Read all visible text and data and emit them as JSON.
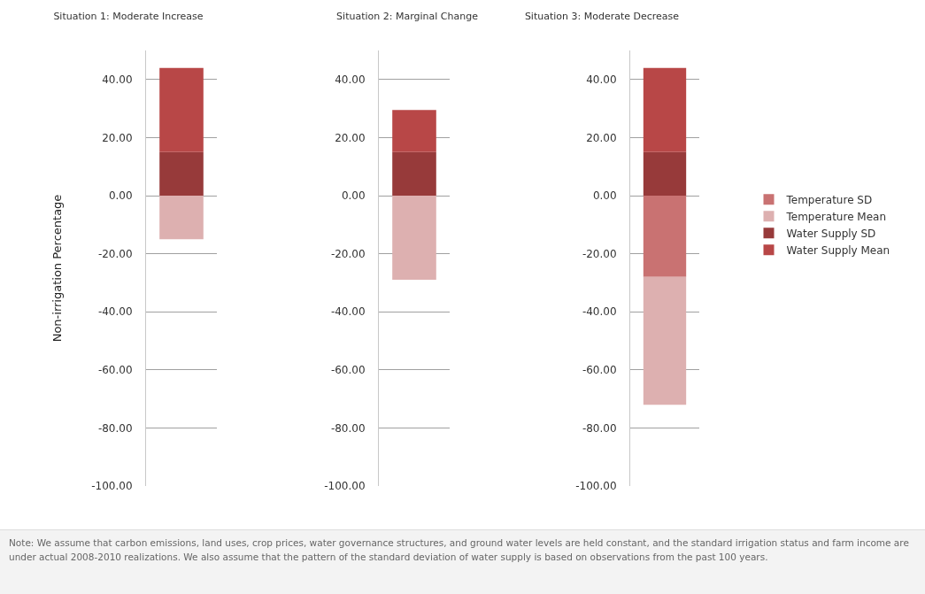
{
  "chart_data": [
    {
      "type": "bar",
      "title": "Situation 1: Moderate Increase",
      "ylabel": "Non-irrigation Percentage",
      "categories": [
        null
      ],
      "stacked": true,
      "relative": false,
      "ylim": [
        -100,
        50
      ],
      "yticks": [
        {
          "value": -100,
          "label": "-100.00"
        },
        {
          "value": -80,
          "label": "-80.00"
        },
        {
          "value": -60,
          "label": "-60.00"
        },
        {
          "value": -40,
          "label": "-40.00"
        },
        {
          "value": -20,
          "label": "-20.00"
        },
        {
          "value": 0,
          "label": "0.00"
        },
        {
          "value": 20,
          "label": "20.00"
        },
        {
          "value": 40,
          "label": "40.00"
        }
      ],
      "grid": "y",
      "legend": false,
      "series": [
        {
          "color": "#c97272",
          "values": [
            null
          ]
        },
        {
          "color": "#ddb0b0",
          "values": [
            -15
          ]
        },
        {
          "color": "#973a3a",
          "values": [
            15
          ]
        },
        {
          "color": "#b84747",
          "values": [
            29
          ]
        }
      ],
      "annotations": [
        "Note: We assume that carbon emissions, land uses, crop prices, water governance structures, and ground water levels are held constant, and the standard irrigation status and farm income are under actual 2008-2010 realizations. We also assume that the pattern of the standard deviation of water supply is based on observations from the past 100 years."
      ]
    },
    {
      "type": "bar",
      "title": "Situation 2: Marginal Change",
      "categories": [
        null
      ],
      "stacked": true,
      "ylim": [
        -100,
        50
      ],
      "yticks": [
        {
          "value": -100,
          "label": "-100.00"
        },
        {
          "value": -80,
          "label": "-80.00"
        },
        {
          "value": -60,
          "label": "-60.00"
        },
        {
          "value": -40,
          "label": "-40.00"
        },
        {
          "value": -20,
          "label": "-20.00"
        },
        {
          "value": 0,
          "label": "0.00"
        },
        {
          "value": 20,
          "label": "20.00"
        },
        {
          "value": 40,
          "label": "40.00"
        }
      ],
      "grid": "y",
      "legend": false,
      "series": [
        {
          "color": "#c97272",
          "values": [
            null
          ]
        },
        {
          "color": "#ddb0b0",
          "values": [
            -29
          ]
        },
        {
          "color": "#973a3a",
          "values": [
            15
          ]
        },
        {
          "color": "#b84747",
          "values": [
            14.5
          ]
        }
      ]
    },
    {
      "type": "bar",
      "title": "Situation 3: Moderate Decrease",
      "categories": [
        null
      ],
      "stacked": true,
      "ylim": [
        -100,
        50
      ],
      "yticks": [
        {
          "value": -100,
          "label": "-100.00"
        },
        {
          "value": -80,
          "label": "-80.00"
        },
        {
          "value": -60,
          "label": "-60.00"
        },
        {
          "value": -40,
          "label": "-40.00"
        },
        {
          "value": -20,
          "label": "-20.00"
        },
        {
          "value": 0,
          "label": "0.00"
        },
        {
          "value": 20,
          "label": "20.00"
        },
        {
          "value": 40,
          "label": "40.00"
        }
      ],
      "grid": "y",
      "legend": "right",
      "series": [
        {
          "name": "Temperature SD",
          "color": "#c97272",
          "values": [
            -28
          ]
        },
        {
          "name": "Temperature Mean",
          "color": "#ddb0b0",
          "values": [
            -44
          ]
        },
        {
          "name": "Water Supply SD",
          "color": "#973a3a",
          "values": [
            15
          ]
        },
        {
          "name": "Water Supply Mean",
          "color": "#b84747",
          "values": [
            29
          ]
        }
      ]
    }
  ]
}
